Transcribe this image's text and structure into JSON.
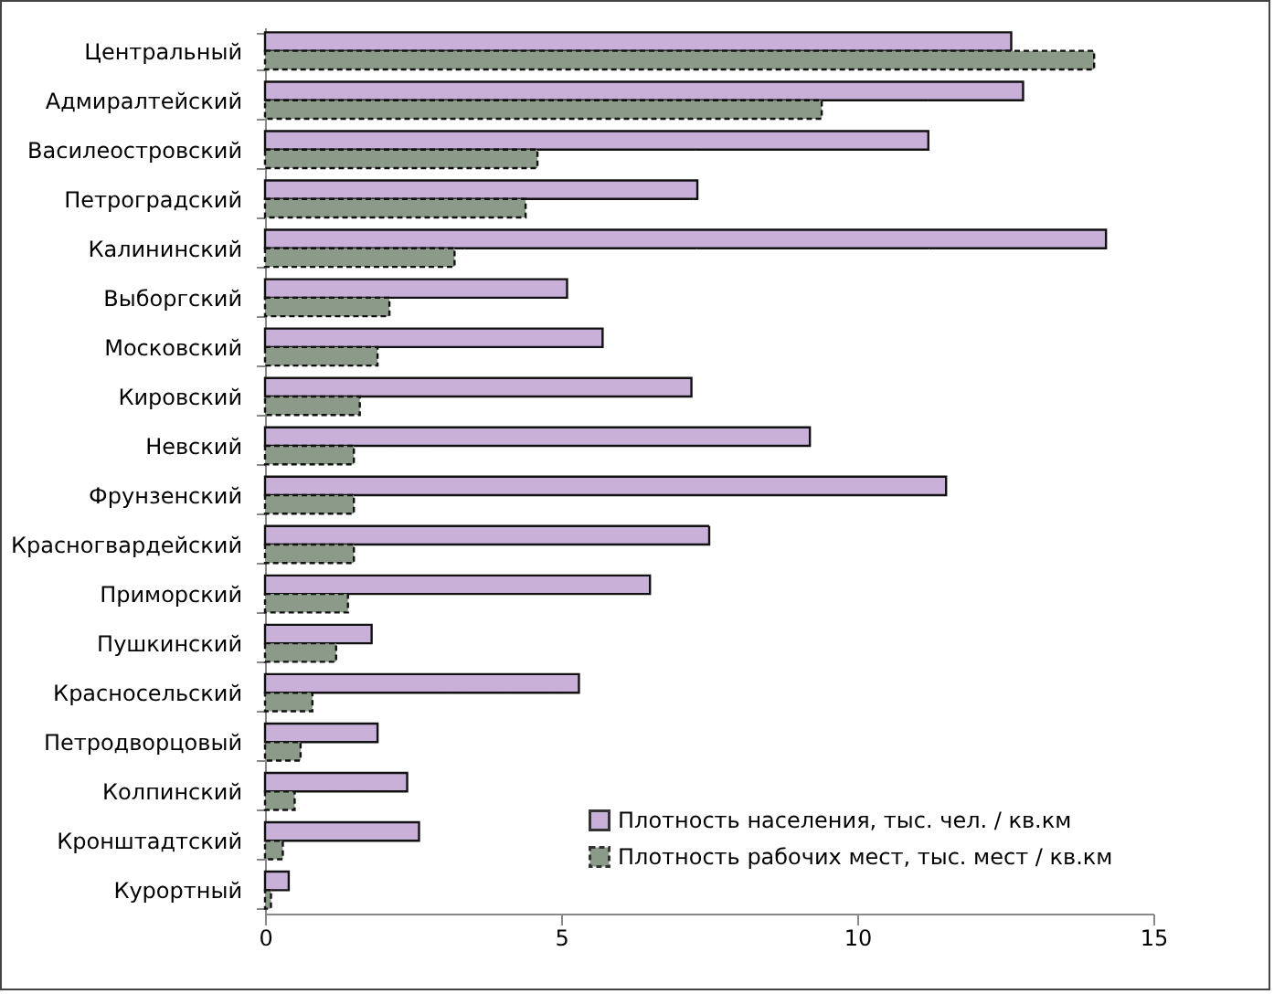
{
  "chart_data": {
    "type": "bar",
    "orientation": "horizontal",
    "categories": [
      "Центральный",
      "Адмиралтейский",
      "Василеостровский",
      "Петроградский",
      "Калининский",
      "Выборгский",
      "Московский",
      "Кировский",
      "Невский",
      "Фрунзенский",
      "Красногвардейский",
      "Приморский",
      "Пушкинский",
      "Красносельский",
      "Петродворцовый",
      "Колпинский",
      "Кронштадтский",
      "Курортный"
    ],
    "series": [
      {
        "name": "Плотность населения, тыс. чел. / кв.км",
        "color": "#c8b0d8",
        "line_style": "solid",
        "values": [
          12.6,
          12.8,
          11.2,
          7.3,
          14.2,
          5.1,
          5.7,
          7.2,
          9.2,
          11.5,
          7.5,
          6.5,
          1.8,
          5.3,
          1.9,
          2.4,
          2.6,
          0.4
        ]
      },
      {
        "name": "Плотность рабочих мест, тыс. мест / кв.км",
        "color": "#8c9a8a",
        "line_style": "dashed",
        "values": [
          14.0,
          9.4,
          4.6,
          4.4,
          3.2,
          2.1,
          1.9,
          1.6,
          1.5,
          1.5,
          1.5,
          1.4,
          1.2,
          0.8,
          0.6,
          0.5,
          0.3,
          0.1
        ]
      }
    ],
    "xlim": [
      0,
      15
    ],
    "xticks": [
      0,
      5,
      10,
      15
    ],
    "grid": false,
    "legend": "bottom right"
  }
}
